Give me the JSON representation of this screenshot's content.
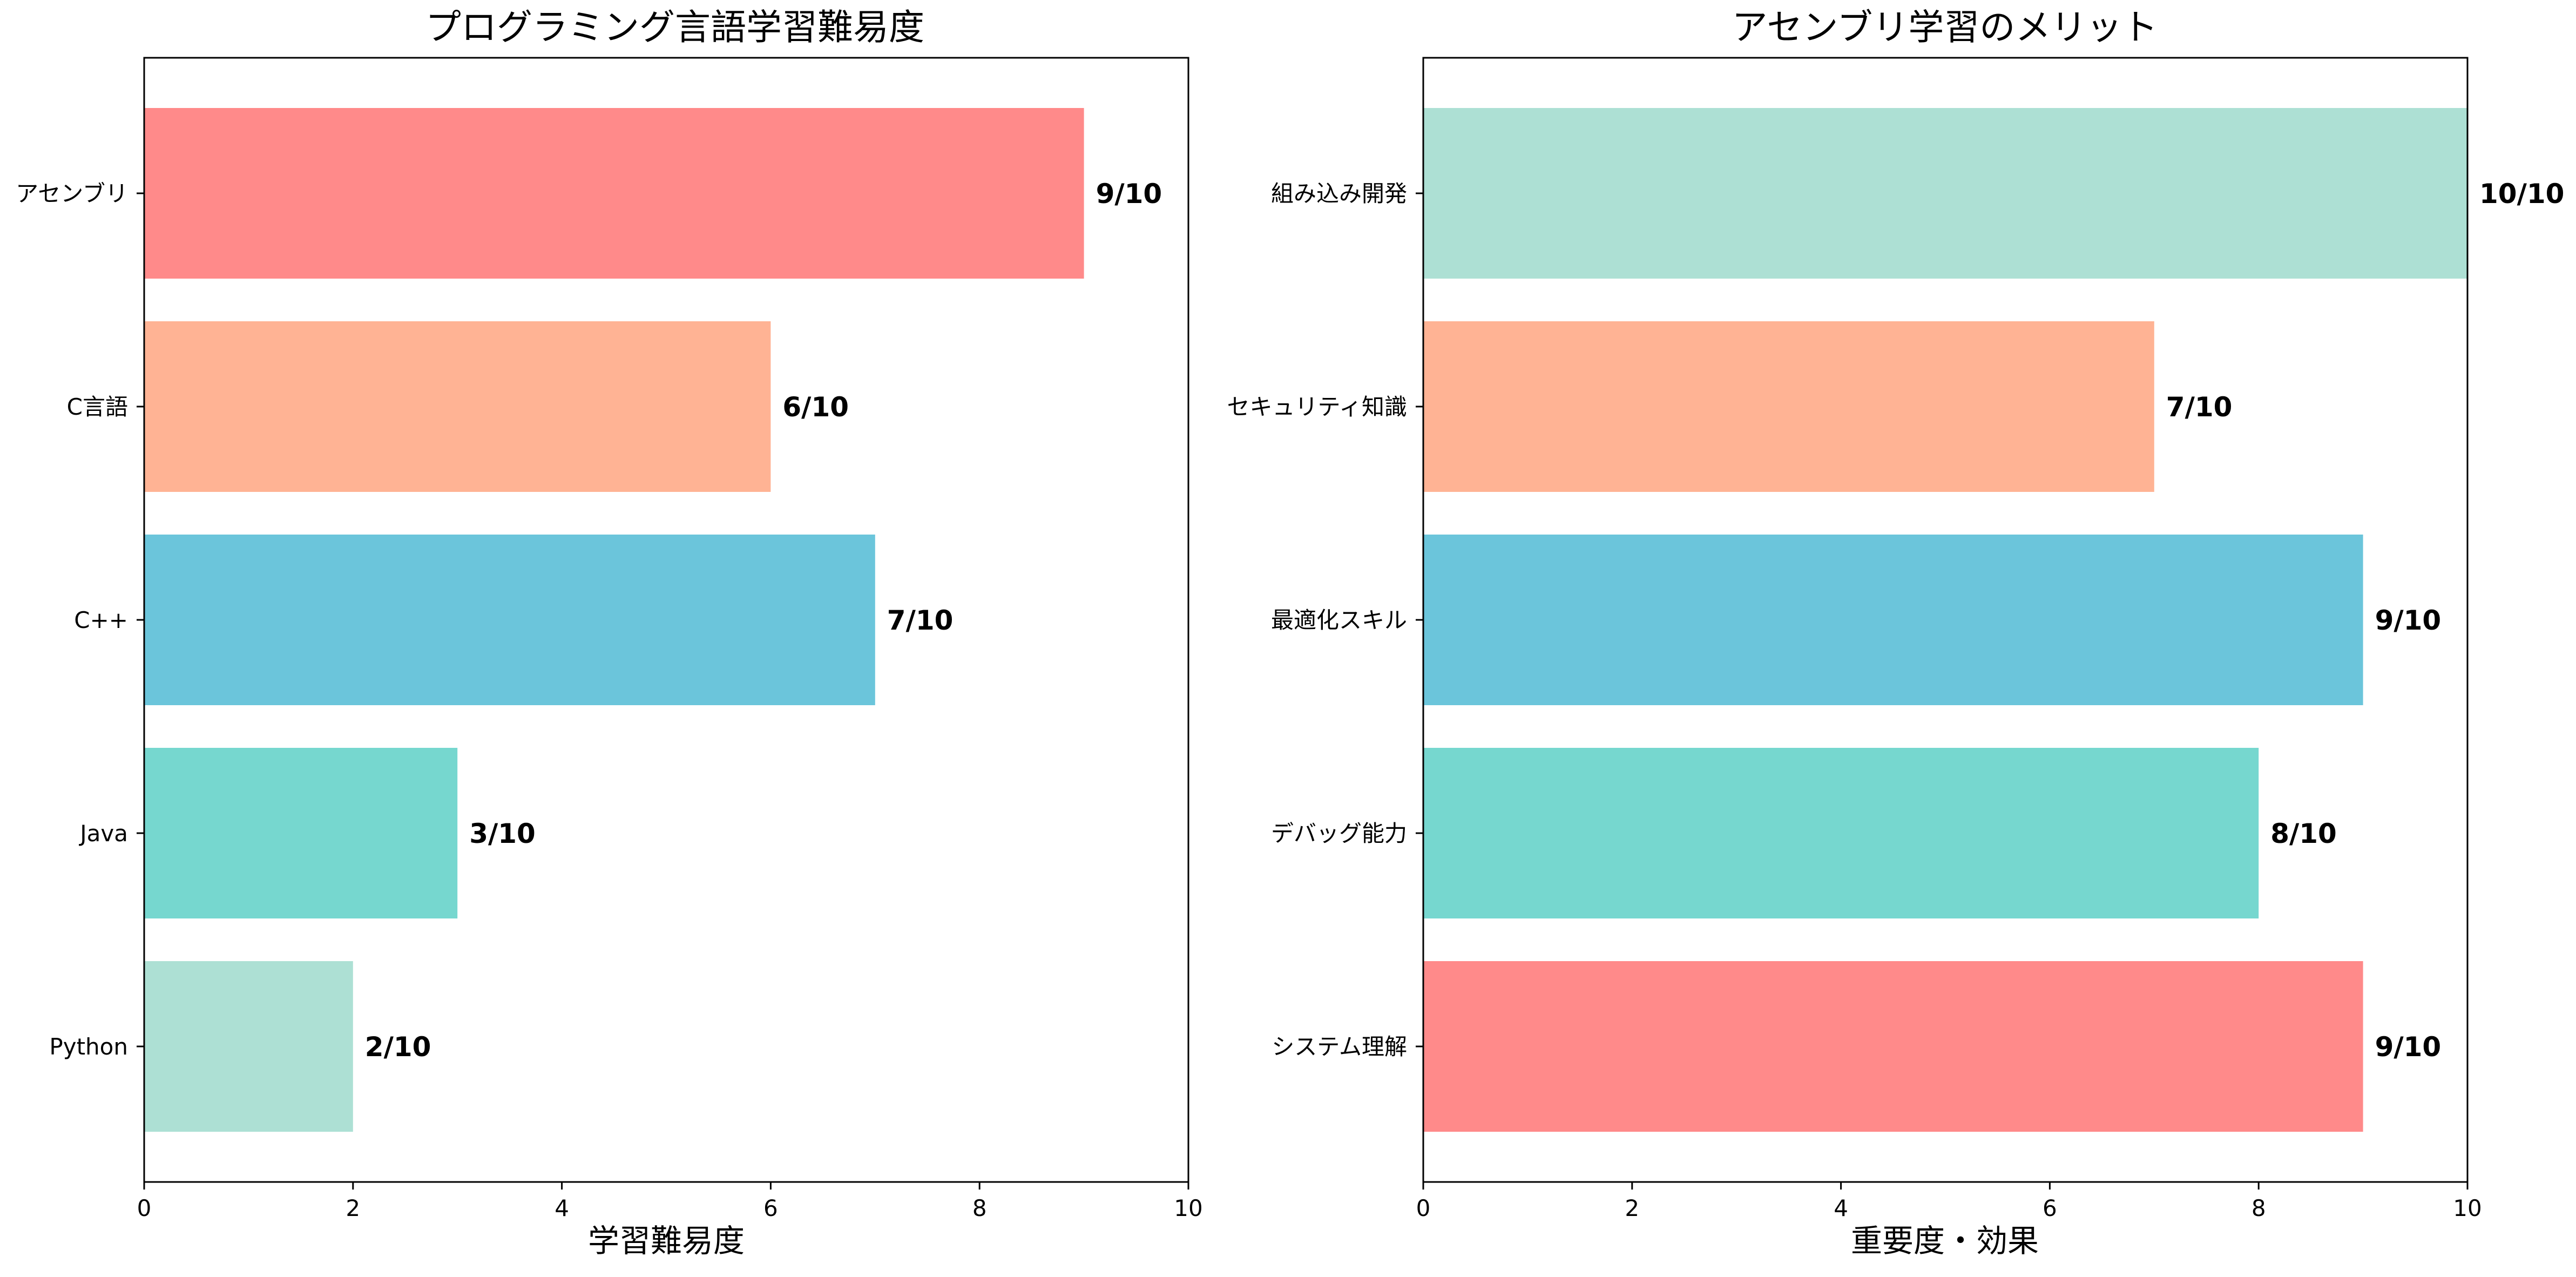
{
  "chart_data": [
    {
      "type": "bar",
      "orientation": "horizontal",
      "title": "プログラミング言語学習難易度",
      "xlabel": "学習難易度",
      "ylabel": "",
      "xlim": [
        0,
        10
      ],
      "xticks": [
        "0",
        "2",
        "4",
        "6",
        "8",
        "10"
      ],
      "categories": [
        "アセンブリ",
        "C言語",
        "C++",
        "Java",
        "Python"
      ],
      "values": [
        9,
        6,
        7,
        3,
        2
      ],
      "value_labels": [
        "9/10",
        "6/10",
        "7/10",
        "3/10",
        "2/10"
      ],
      "colors": [
        "#FF8A8A",
        "#FFB394",
        "#6BC5DB",
        "#76D7CF",
        "#ADE0D4"
      ],
      "grid": false,
      "legend": "none"
    },
    {
      "type": "bar",
      "orientation": "horizontal",
      "title": "アセンブリ学習のメリット",
      "xlabel": "重要度・効果",
      "ylabel": "",
      "xlim": [
        0,
        10
      ],
      "xticks": [
        "0",
        "2",
        "4",
        "6",
        "8",
        "10"
      ],
      "categories": [
        "組み込み開発",
        "セキュリティ知識",
        "最適化スキル",
        "デバッグ能力",
        "システム理解"
      ],
      "values": [
        10,
        7,
        9,
        8,
        9
      ],
      "value_labels": [
        "10/10",
        "7/10",
        "9/10",
        "8/10",
        "9/10"
      ],
      "colors": [
        "#ADE0D4",
        "#FFB394",
        "#6BC5DB",
        "#76D7CF",
        "#FF8A8A"
      ],
      "grid": false,
      "legend": "none"
    }
  ]
}
